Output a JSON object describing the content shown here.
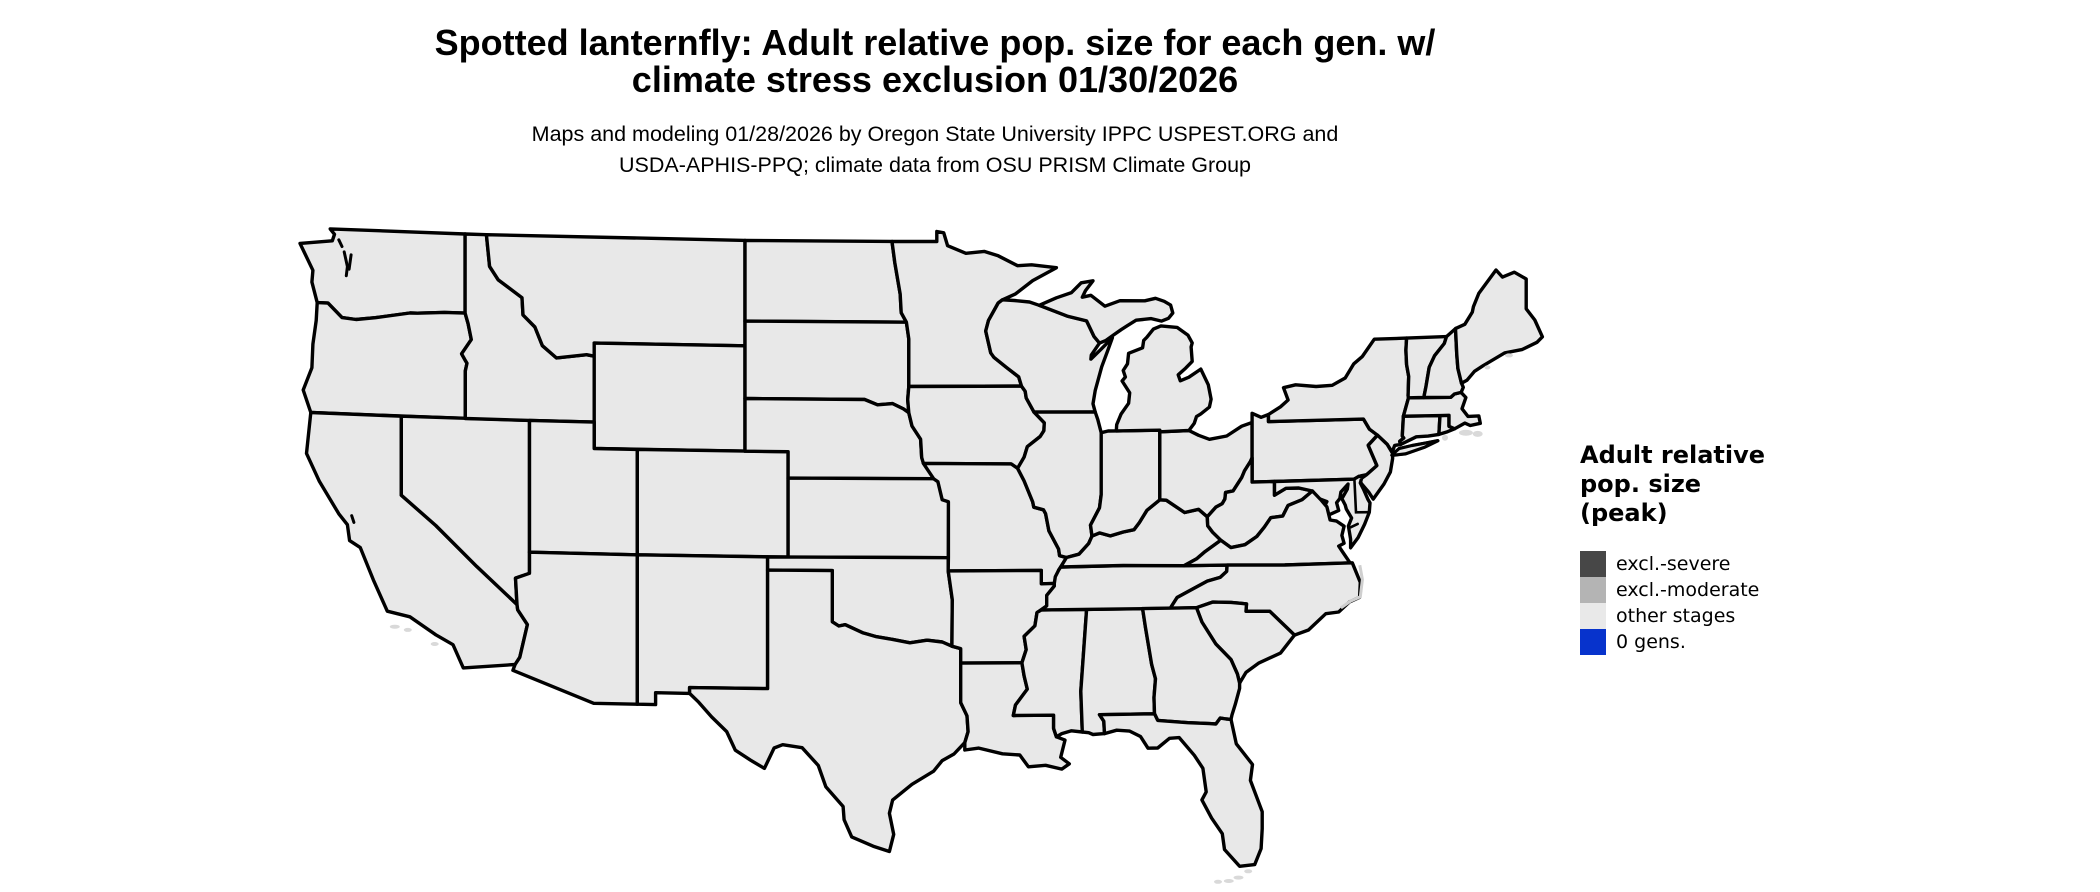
{
  "header": {
    "title_line1": "Spotted lanternfly: Adult relative pop. size for each gen. w/",
    "title_line2": "climate stress exclusion 01/30/2026",
    "subtitle_line1": "Maps and modeling 01/28/2026 by Oregon State University IPPC USPEST.ORG and",
    "subtitle_line2": "USDA-APHIS-PPQ; climate data from OSU PRISM Climate Group"
  },
  "legend": {
    "title_lines": [
      "Adult relative",
      "pop. size",
      "(peak)"
    ],
    "items": [
      {
        "label": "excl.-severe",
        "color": "#474747"
      },
      {
        "label": "excl.-moderate",
        "color": "#b4b4b4"
      },
      {
        "label": "other stages",
        "color": "#e9e9e9"
      },
      {
        "label": "0 gens.",
        "color": "#0733cc"
      }
    ]
  },
  "map": {
    "state_fill": "#e8e8e8",
    "border_color": "#000000",
    "water_color": "#ffffff",
    "island_fill": "#d9d9d9",
    "background": "#ffffff",
    "region_status": "all states shown as: other stages"
  }
}
